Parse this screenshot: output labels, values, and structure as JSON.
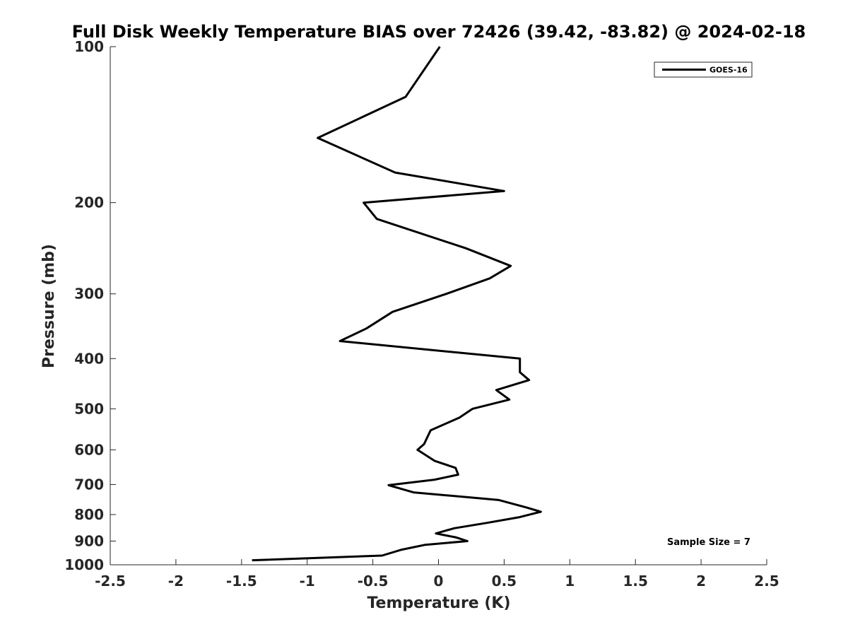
{
  "chart_data": {
    "type": "line",
    "title": "Full Disk Weekly Temperature BIAS over 72426 (39.42, -83.82) @ 2024-02-18",
    "xlabel": "Temperature (K)",
    "ylabel": "Pressure (mb)",
    "xlim": [
      -2.5,
      2.5
    ],
    "ylim": [
      1000,
      100
    ],
    "y_scale": "log",
    "x_ticks": [
      -2.5,
      -2,
      -1.5,
      -1,
      -0.5,
      0,
      0.5,
      1,
      1.5,
      2,
      2.5
    ],
    "x_tick_labels": [
      "-2.5",
      "-2",
      "-1.5",
      "-1",
      "-0.5",
      "0",
      "0.5",
      "1",
      "1.5",
      "2",
      "2.5"
    ],
    "y_ticks": [
      100,
      200,
      300,
      400,
      500,
      600,
      700,
      800,
      900,
      1000
    ],
    "y_tick_labels": [
      "100",
      "200",
      "300",
      "400",
      "500",
      "600",
      "700",
      "800",
      "900",
      "1000"
    ],
    "grid": false,
    "legend_position": "top-right",
    "annotation": "Sample Size = 7",
    "series": [
      {
        "name": "GOES-16",
        "color": "#000000",
        "points": [
          {
            "x": 0.01,
            "y": 100
          },
          {
            "x": -0.25,
            "y": 125
          },
          {
            "x": -0.92,
            "y": 150
          },
          {
            "x": -0.33,
            "y": 175
          },
          {
            "x": 0.5,
            "y": 190
          },
          {
            "x": -0.57,
            "y": 200
          },
          {
            "x": -0.47,
            "y": 215
          },
          {
            "x": 0.21,
            "y": 245
          },
          {
            "x": 0.55,
            "y": 265
          },
          {
            "x": 0.39,
            "y": 280
          },
          {
            "x": 0.06,
            "y": 300
          },
          {
            "x": -0.35,
            "y": 325
          },
          {
            "x": -0.55,
            "y": 350
          },
          {
            "x": -0.75,
            "y": 370
          },
          {
            "x": 0.62,
            "y": 400
          },
          {
            "x": 0.62,
            "y": 425
          },
          {
            "x": 0.69,
            "y": 440
          },
          {
            "x": 0.44,
            "y": 460
          },
          {
            "x": 0.54,
            "y": 480
          },
          {
            "x": 0.26,
            "y": 500
          },
          {
            "x": 0.16,
            "y": 520
          },
          {
            "x": -0.06,
            "y": 550
          },
          {
            "x": -0.11,
            "y": 585
          },
          {
            "x": -0.16,
            "y": 600
          },
          {
            "x": -0.03,
            "y": 630
          },
          {
            "x": 0.13,
            "y": 650
          },
          {
            "x": 0.15,
            "y": 670
          },
          {
            "x": -0.03,
            "y": 685
          },
          {
            "x": -0.38,
            "y": 702
          },
          {
            "x": -0.19,
            "y": 725
          },
          {
            "x": 0.46,
            "y": 750
          },
          {
            "x": 0.67,
            "y": 775
          },
          {
            "x": 0.78,
            "y": 790
          },
          {
            "x": 0.61,
            "y": 810
          },
          {
            "x": 0.37,
            "y": 830
          },
          {
            "x": 0.12,
            "y": 850
          },
          {
            "x": -0.02,
            "y": 870
          },
          {
            "x": 0.13,
            "y": 885
          },
          {
            "x": 0.22,
            "y": 900
          },
          {
            "x": -0.1,
            "y": 915
          },
          {
            "x": -0.28,
            "y": 935
          },
          {
            "x": -0.43,
            "y": 960
          },
          {
            "x": -1.42,
            "y": 980
          }
        ]
      }
    ]
  }
}
